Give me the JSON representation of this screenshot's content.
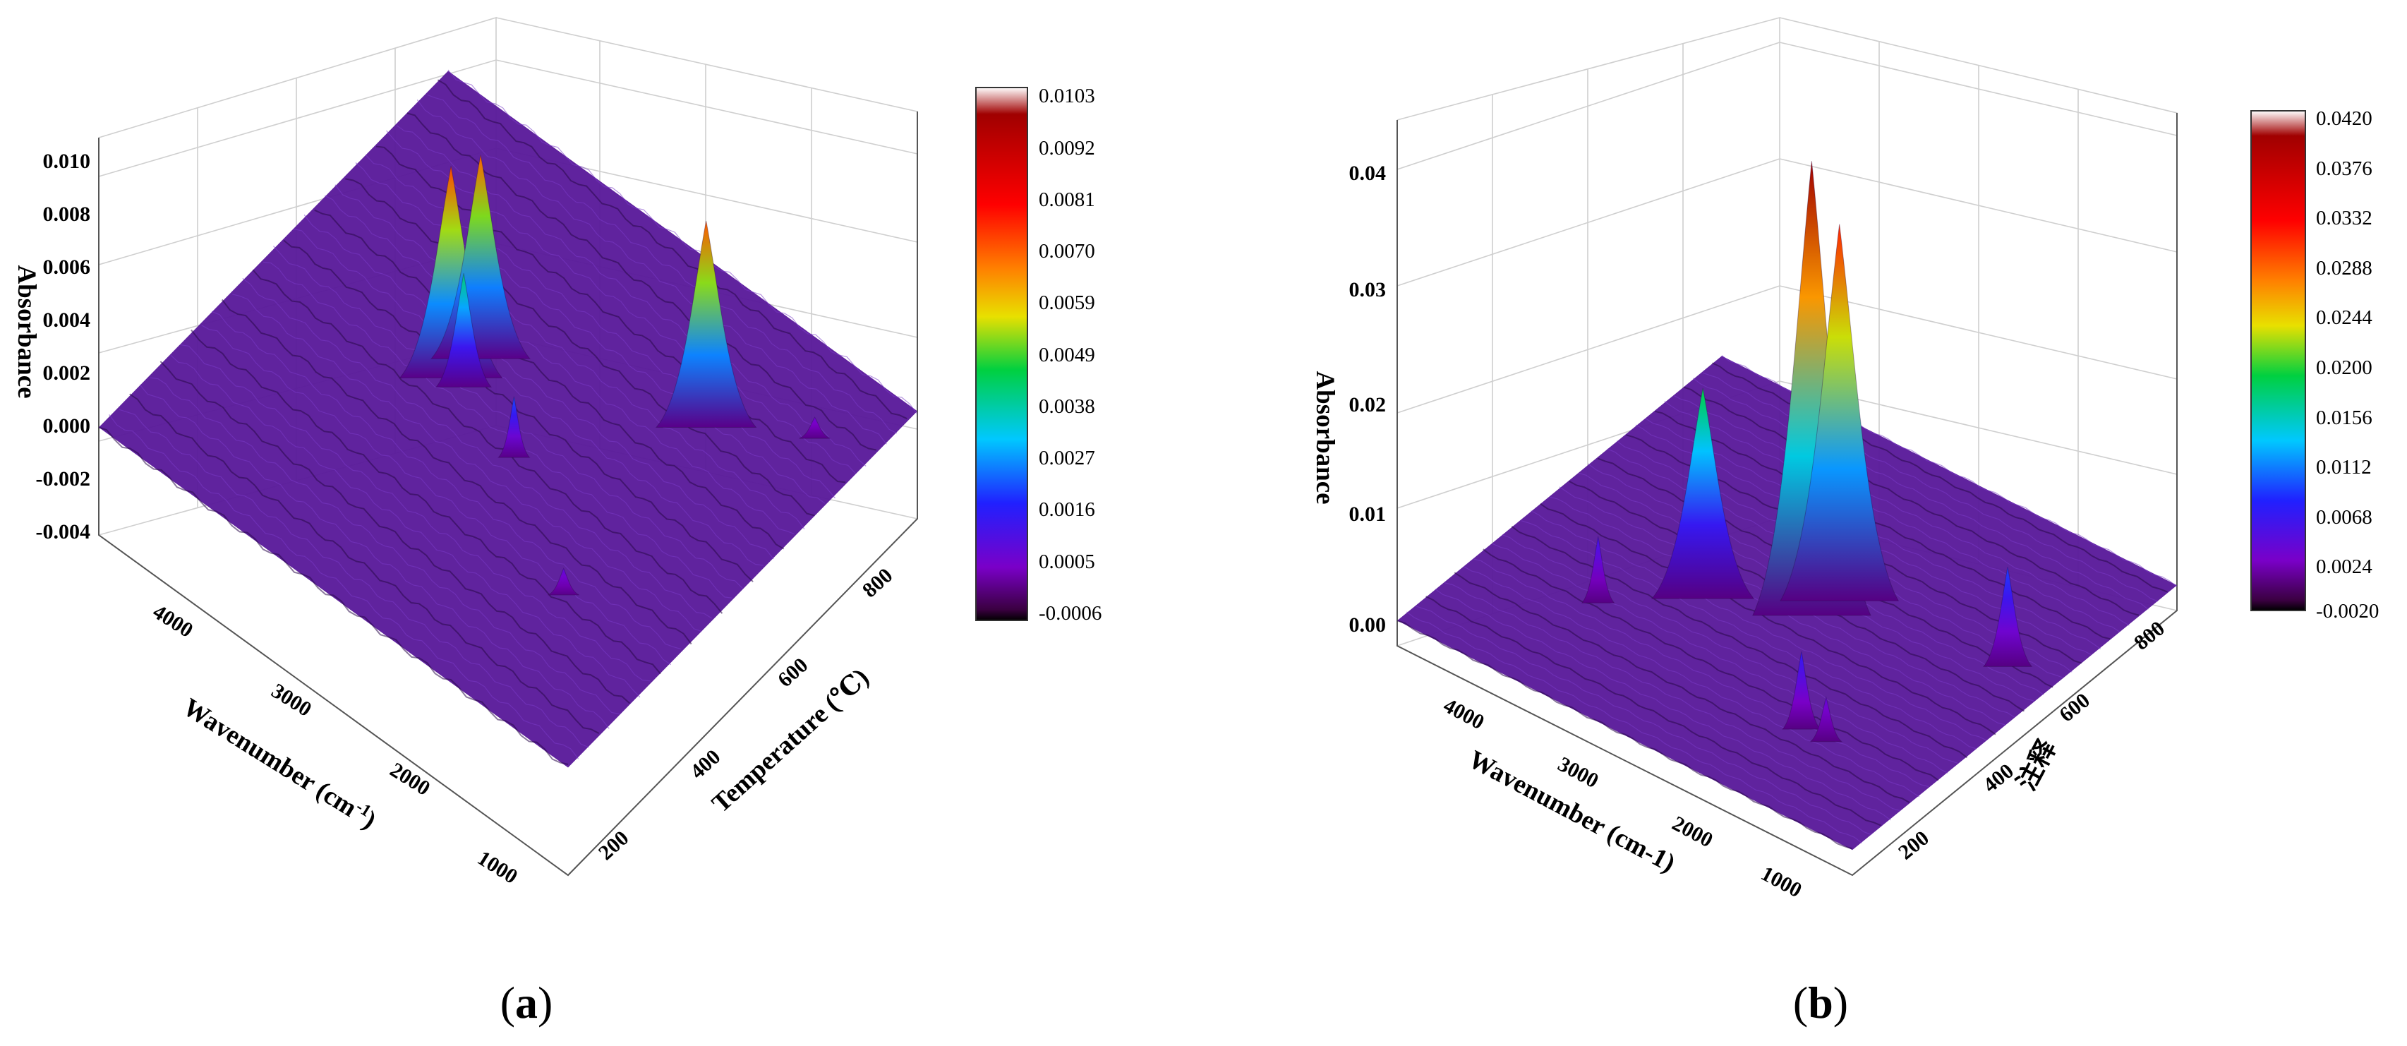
{
  "panels": [
    {
      "label_open": "(",
      "label_letter": "a",
      "label_close": ")",
      "zlabel": "Absorbance",
      "xlabel_main": "Wavenumber (cm",
      "xlabel_sup": "-1",
      "xlabel_end": ")",
      "ylabel": "Temperature (℃)",
      "z_ticks": [
        "-0.004",
        "-0.002",
        "0.000",
        "0.002",
        "0.004",
        "0.006",
        "0.008",
        "0.010"
      ],
      "x_ticks": [
        "4000",
        "3000",
        "2000",
        "1000"
      ],
      "y_ticks": [
        "200",
        "400",
        "600",
        "800"
      ],
      "colorbar_ticks": [
        "0.0103",
        "0.0092",
        "0.0081",
        "0.0070",
        "0.0059",
        "0.0049",
        "0.0038",
        "0.0027",
        "0.0016",
        "0.0005",
        "-0.0006"
      ]
    },
    {
      "label_open": "(",
      "label_letter": "b",
      "label_close": ")",
      "zlabel": "Absorbance",
      "xlabel_main": "Wavenumber (cm-1)",
      "ylabel": "注释",
      "z_ticks": [
        "0.00",
        "0.01",
        "0.02",
        "0.03",
        "0.04"
      ],
      "x_ticks": [
        "4000",
        "3000",
        "2000",
        "1000"
      ],
      "y_ticks": [
        "200",
        "400",
        "600",
        "800"
      ],
      "colorbar_ticks": [
        "0.0420",
        "0.0376",
        "0.0332",
        "0.0288",
        "0.0244",
        "0.0200",
        "0.0156",
        "0.0112",
        "0.0068",
        "0.0024",
        "-0.0020"
      ]
    }
  ],
  "chart_data": [
    {
      "type": "surface3d",
      "panel": "a",
      "xlabel": "Wavenumber (cm-1)",
      "ylabel": "Temperature (℃)",
      "zlabel": "Absorbance",
      "xlim": [
        4400,
        700
      ],
      "ylim": [
        50,
        950
      ],
      "zlim": [
        -0.004,
        0.011
      ],
      "colormap": [
        "#2a0030",
        "#7a00c8",
        "#2020ff",
        "#00c8ff",
        "#00d040",
        "#e8e000",
        "#ff8000",
        "#ff0000",
        "#a00000"
      ],
      "colorbar_range": [
        -0.0006,
        0.0103
      ],
      "baseline": 0.0002,
      "peaks": [
        {
          "wavenumber": 3000,
          "temperature": 500,
          "absorbance": 0.0082
        },
        {
          "wavenumber": 2950,
          "temperature": 560,
          "absorbance": 0.0079
        },
        {
          "wavenumber": 2900,
          "temperature": 500,
          "absorbance": 0.0045
        },
        {
          "wavenumber": 2350,
          "temperature": 450,
          "absorbance": 0.0025
        },
        {
          "wavenumber": 1600,
          "temperature": 700,
          "absorbance": 0.008
        },
        {
          "wavenumber": 1500,
          "temperature": 300,
          "absorbance": 0.0012
        },
        {
          "wavenumber": 1050,
          "temperature": 800,
          "absorbance": 0.001
        }
      ]
    },
    {
      "type": "surface3d",
      "panel": "b",
      "xlabel": "Wavenumber (cm-1)",
      "ylabel": "注释",
      "zlabel": "Absorbance",
      "xlim": [
        4400,
        700
      ],
      "ylim": [
        50,
        950
      ],
      "zlim": [
        -0.001,
        0.043
      ],
      "colormap": [
        "#2a0030",
        "#7a00c8",
        "#2020ff",
        "#00c8ff",
        "#00d040",
        "#e8e000",
        "#ff8000",
        "#ff0000",
        "#a00000"
      ],
      "colorbar_range": [
        -0.002,
        0.042
      ],
      "baseline": 0.001,
      "peaks": [
        {
          "wavenumber": 2350,
          "temperature": 500,
          "absorbance": 0.042
        },
        {
          "wavenumber": 2300,
          "temperature": 560,
          "absorbance": 0.035
        },
        {
          "wavenumber": 3000,
          "temperature": 420,
          "absorbance": 0.02
        },
        {
          "wavenumber": 3500,
          "temperature": 300,
          "absorbance": 0.007
        },
        {
          "wavenumber": 1700,
          "temperature": 250,
          "absorbance": 0.008
        },
        {
          "wavenumber": 1500,
          "temperature": 250,
          "absorbance": 0.005
        },
        {
          "wavenumber": 1050,
          "temperature": 600,
          "absorbance": 0.01
        }
      ]
    }
  ]
}
